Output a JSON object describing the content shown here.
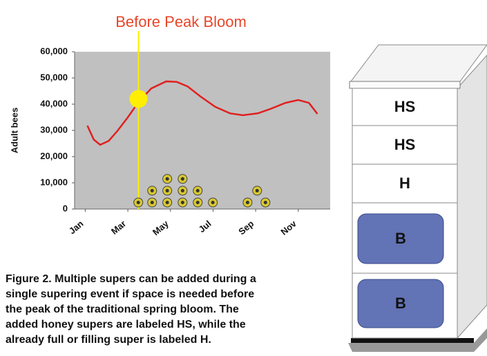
{
  "chart_data": {
    "type": "line",
    "title": "Before Peak Bloom",
    "y_label": "Adult bees",
    "xlim": [
      0.5,
      12.5
    ],
    "xticks": [
      {
        "value": 1,
        "label": "Jan"
      },
      {
        "value": 3,
        "label": "Mar"
      },
      {
        "value": 5,
        "label": "May"
      },
      {
        "value": 7,
        "label": "Jul"
      },
      {
        "value": 9,
        "label": "Sep"
      },
      {
        "value": 11,
        "label": "Nov"
      }
    ],
    "ylim": [
      0,
      60000
    ],
    "yticks": [
      {
        "value": 0,
        "label": "0"
      },
      {
        "value": 10000,
        "label": "10,000"
      },
      {
        "value": 20000,
        "label": "20,000"
      },
      {
        "value": 30000,
        "label": "30,000"
      },
      {
        "value": 40000,
        "label": "40,000"
      },
      {
        "value": 50000,
        "label": "50,000"
      },
      {
        "value": 60000,
        "label": "60,000"
      }
    ],
    "highlight": {
      "x": 3.5,
      "y": 42000,
      "color": "#ffee00"
    },
    "series": [
      {
        "type": "line",
        "color": "#e02020",
        "x": [
          1.1,
          1.4,
          1.7,
          2.1,
          2.5,
          3.0,
          3.5,
          4.1,
          4.8,
          5.3,
          5.8,
          6.4,
          7.1,
          7.8,
          8.4,
          9.1,
          9.7,
          10.4,
          11.0,
          11.5,
          11.9
        ],
        "values": [
          31800,
          26500,
          24500,
          26000,
          29700,
          35000,
          40800,
          46000,
          48700,
          48500,
          46800,
          43000,
          39000,
          36500,
          35800,
          36500,
          38200,
          40500,
          41600,
          40500,
          36300
        ]
      },
      {
        "type": "scatter",
        "color": "#d8c830",
        "x": [
          3.49,
          4.14,
          4.14,
          4.85,
          4.85,
          4.85,
          5.57,
          5.57,
          5.57,
          6.28,
          6.28,
          6.99,
          8.62,
          9.07,
          9.46
        ],
        "values": [
          2500,
          2500,
          7000,
          2500,
          7000,
          11500,
          2500,
          7000,
          11500,
          2500,
          7000,
          2500,
          2500,
          7000,
          2500
        ]
      }
    ]
  },
  "diagram": {
    "boxes": [
      "HS",
      "HS",
      "H",
      "B",
      "B"
    ]
  },
  "caption": [
    "Figure 2. Multiple supers can be added during a",
    "single supering event if space is needed before",
    "the peak of the traditional spring bloom. The",
    "added honey supers are labeled HS, while the",
    "already full or filling super is labeled H."
  ]
}
